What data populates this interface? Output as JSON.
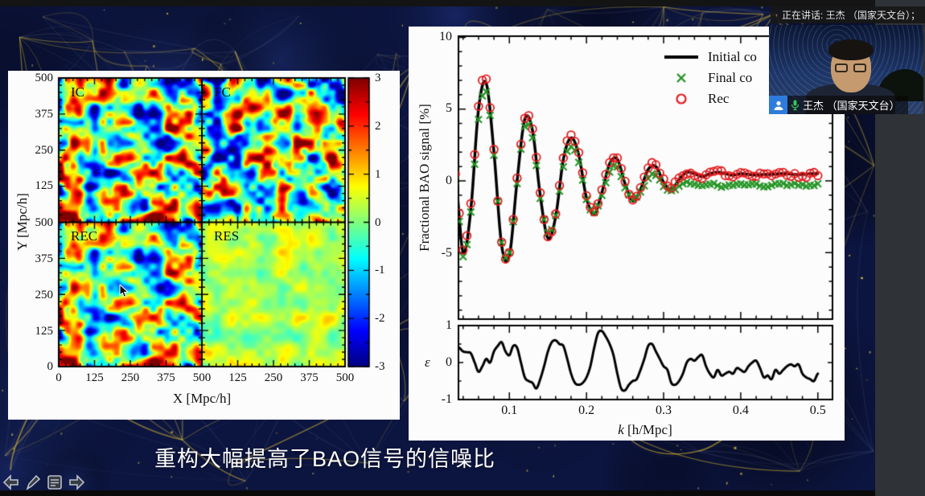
{
  "app": {
    "speaking_banner_text": "正在讲话: 王杰 （国家天文台）；",
    "participant_label": "王杰 （国家天文台）"
  },
  "slide": {
    "caption": "重构大幅提高了BAO信号的信噪比"
  },
  "left_figure": {
    "panel_labels": [
      "IC",
      "FC",
      "REC",
      "RES"
    ],
    "xlabel": "X [Mpc/h]",
    "ylabel": "Y [Mpc/h]",
    "x_tick_labels": [
      "0",
      "125",
      "250",
      "375",
      "500",
      "125",
      "250",
      "375",
      "500"
    ],
    "y_tick_labels": [
      "500",
      "375",
      "250",
      "125",
      "500",
      "375",
      "250",
      "125",
      "0"
    ],
    "colorbar_tick_labels": [
      "3",
      "2",
      "1",
      "0",
      "-1",
      "-2",
      "-3"
    ]
  },
  "right_figure": {
    "ylabel_main": "Fractional BAO signal [%]",
    "ylabel_res": "ε",
    "xlabel_italic": "k",
    "xlabel_rest": " [h/Mpc]",
    "y_ticks_main": [
      "10",
      "5",
      "0",
      "-5"
    ],
    "y_ticks_res": [
      "1",
      "0",
      "-1"
    ],
    "x_ticks": [
      "0.1",
      "0.2",
      "0.3",
      "0.4",
      "0.5"
    ],
    "legend": [
      {
        "label": "Initial co",
        "marker": "line",
        "color": "#000000"
      },
      {
        "label": "Final co",
        "marker": "x",
        "color": "#259425"
      },
      {
        "label": "Rec",
        "marker": "circle",
        "color": "#e41a1c"
      }
    ]
  },
  "chart_data": [
    {
      "type": "heatmap",
      "panels": [
        {
          "label": "IC",
          "seed": 7,
          "contrast": 1.0,
          "bias": 0
        },
        {
          "label": "FC",
          "seed": 19,
          "contrast": 0.95,
          "bias": 0
        },
        {
          "label": "REC",
          "seed": 7,
          "contrast": 0.85,
          "bias": 0
        },
        {
          "label": "RES",
          "seed": 51,
          "contrast": 0.2,
          "bias": 0.3
        }
      ],
      "xlabel": "X [Mpc/h]",
      "ylabel": "Y [Mpc/h]",
      "x_range": [
        0,
        500
      ],
      "y_range": [
        0,
        500
      ],
      "colorbar_range": [
        -3,
        3
      ],
      "colormap": "jet"
    },
    {
      "type": "line",
      "ylabel": "Fractional BAO signal [%]",
      "xlim": [
        0.034,
        0.519
      ],
      "ylim": [
        -9.7,
        10
      ],
      "x_start": 0.03,
      "x_step": 0.01,
      "series": [
        {
          "name": "Initial co",
          "style": "line",
          "color": "#000000",
          "values": [
            0.3,
            -5.0,
            -2.0,
            5.0,
            6.8,
            2.0,
            -4.5,
            -5.2,
            0.0,
            4.3,
            3.5,
            -1.0,
            -4.0,
            -2.5,
            1.5,
            3.0,
            1.8,
            -1.2,
            -2.3,
            -0.8,
            1.2,
            1.5,
            -0.2,
            -1.4,
            -0.6,
            0.8,
            1.0,
            -0.1,
            -0.6,
            0.1,
            0.6,
            0.5,
            0.3,
            0.5,
            0.6,
            0.5,
            0.4,
            0.5,
            0.45,
            0.4,
            0.45,
            0.45,
            0.5,
            0.5,
            0.45,
            0.45,
            0.5,
            0.5
          ]
        },
        {
          "name": "Final co",
          "style": "x",
          "color": "#259425",
          "values": [
            0.0,
            -5.3,
            -2.2,
            4.3,
            6.2,
            1.8,
            -4.3,
            -5.0,
            -0.2,
            3.8,
            3.0,
            -1.2,
            -3.6,
            -2.4,
            1.0,
            2.4,
            1.3,
            -1.3,
            -2.2,
            -1.0,
            0.6,
            1.0,
            -0.5,
            -1.3,
            -0.8,
            0.2,
            0.4,
            -0.4,
            -0.7,
            -0.4,
            -0.1,
            -0.2,
            -0.3,
            -0.2,
            -0.3,
            -0.4,
            -0.3,
            -0.2,
            -0.3,
            -0.2,
            -0.4,
            -0.3,
            -0.2,
            -0.3,
            -0.2,
            -0.3,
            -0.3,
            -0.2
          ]
        },
        {
          "name": "Rec",
          "style": "circle",
          "color": "#e41a1c",
          "values": [
            0.5,
            -4.8,
            -1.6,
            5.2,
            7.1,
            2.2,
            -4.3,
            -5.0,
            0.2,
            4.4,
            3.6,
            -0.8,
            -3.9,
            -2.3,
            1.6,
            3.2,
            2.0,
            -1.0,
            -2.2,
            -0.6,
            1.3,
            1.6,
            0.0,
            -1.3,
            -0.5,
            0.9,
            1.1,
            0.1,
            -0.5,
            0.2,
            0.5,
            0.4,
            0.2,
            0.6,
            0.7,
            0.4,
            0.3,
            0.6,
            0.4,
            0.3,
            0.5,
            0.4,
            0.6,
            0.4,
            0.5,
            0.3,
            0.5,
            0.4
          ]
        }
      ]
    },
    {
      "type": "line",
      "ylabel": "ε",
      "xlabel": "k [h/Mpc]",
      "xlim": [
        0.034,
        0.519
      ],
      "ylim": [
        -1,
        1
      ],
      "x_start": 0.03,
      "x_step": 0.005,
      "series": [
        {
          "name": "epsilon",
          "style": "line",
          "color": "#000000",
          "values": [
            0.45,
            0.4,
            0.3,
            0.28,
            0.25,
            0.0,
            -0.25,
            -0.1,
            0.1,
            0.0,
            0.3,
            0.45,
            0.55,
            0.3,
            0.2,
            0.45,
            0.4,
            0.0,
            -0.4,
            -0.5,
            -0.55,
            -0.7,
            -0.45,
            -0.1,
            0.3,
            0.55,
            0.6,
            0.5,
            0.45,
            0.1,
            -0.3,
            -0.55,
            -0.6,
            -0.55,
            -0.4,
            -0.1,
            0.4,
            0.8,
            0.85,
            0.7,
            0.5,
            0.2,
            -0.3,
            -0.7,
            -0.75,
            -0.6,
            -0.5,
            -0.45,
            -0.2,
            0.1,
            0.45,
            0.5,
            0.3,
            0.1,
            -0.1,
            -0.2,
            -0.55,
            -0.6,
            -0.5,
            -0.3,
            0.0,
            0.1,
            0.05,
            0.15,
            0.2,
            -0.1,
            -0.3,
            -0.4,
            -0.2,
            -0.35,
            -0.3,
            -0.25,
            -0.3,
            -0.15,
            -0.2,
            -0.25,
            -0.1,
            0.0,
            0.05,
            -0.15,
            -0.4,
            -0.35,
            -0.45,
            -0.2,
            -0.3,
            -0.2,
            -0.1,
            -0.05,
            -0.1,
            -0.05,
            -0.3,
            -0.4,
            -0.45,
            -0.5,
            -0.3
          ]
        }
      ]
    }
  ]
}
